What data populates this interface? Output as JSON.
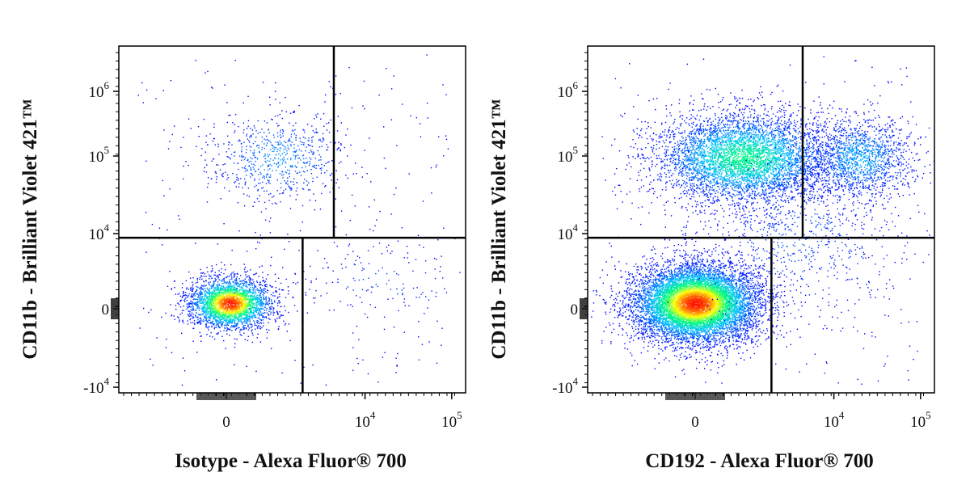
{
  "chart_data": [
    {
      "type": "scatter",
      "plot_style": "flow cytometry density dot plot, pseudocolor (blue-cyan-green-yellow-red)",
      "xlabel": "Isotype - Alexa Fluor® 700",
      "ylabel": "CD11b - Brilliant Violet 421™",
      "x_scale": "biexponential",
      "y_scale": "biexponential",
      "x_ticks": [
        {
          "value": 0,
          "base": "0",
          "exp": ""
        },
        {
          "value": 10000,
          "base": "10",
          "exp": "4"
        },
        {
          "value": 100000,
          "base": "10",
          "exp": "5"
        }
      ],
      "y_ticks": [
        {
          "value": -10000,
          "base": "-10",
          "exp": "4"
        },
        {
          "value": 0,
          "base": "0",
          "exp": ""
        },
        {
          "value": 10000,
          "base": "10",
          "exp": "4"
        },
        {
          "value": 100000,
          "base": "10",
          "exp": "5"
        },
        {
          "value": 1000000,
          "base": "10",
          "exp": "6"
        }
      ],
      "quadrant_gate": {
        "x_upper_split": 4000,
        "x_lower_split": 2000,
        "y_split": 6000
      },
      "populations": [
        {
          "center_x": 0,
          "center_y": 0,
          "density": "high",
          "peak_color": "red"
        },
        {
          "center_x": 1500,
          "center_y": 90000,
          "density": "low",
          "peak_color": "blue"
        }
      ]
    },
    {
      "type": "scatter",
      "plot_style": "flow cytometry density dot plot, pseudocolor (blue-cyan-green-yellow-red)",
      "xlabel": "CD192 - Alexa Fluor® 700",
      "ylabel": "CD11b - Brilliant Violet 421™",
      "x_scale": "biexponential",
      "y_scale": "biexponential",
      "x_ticks": [
        {
          "value": 0,
          "base": "0",
          "exp": ""
        },
        {
          "value": 10000,
          "base": "10",
          "exp": "4"
        },
        {
          "value": 100000,
          "base": "10",
          "exp": "5"
        }
      ],
      "y_ticks": [
        {
          "value": -10000,
          "base": "-10",
          "exp": "4"
        },
        {
          "value": 0,
          "base": "0",
          "exp": ""
        },
        {
          "value": 10000,
          "base": "10",
          "exp": "4"
        },
        {
          "value": 100000,
          "base": "10",
          "exp": "5"
        },
        {
          "value": 1000000,
          "base": "10",
          "exp": "6"
        }
      ],
      "quadrant_gate": {
        "x_upper_split": 4000,
        "x_lower_split": 2000,
        "y_split": 6000
      },
      "populations": [
        {
          "center_x": 0,
          "center_y": 0,
          "density": "very high",
          "peak_color": "red"
        },
        {
          "center_x": 1200,
          "center_y": 90000,
          "density": "high",
          "peak_color": "cyan"
        },
        {
          "center_x": 20000,
          "center_y": 100000,
          "density": "medium",
          "peak_color": "blue"
        }
      ]
    }
  ]
}
